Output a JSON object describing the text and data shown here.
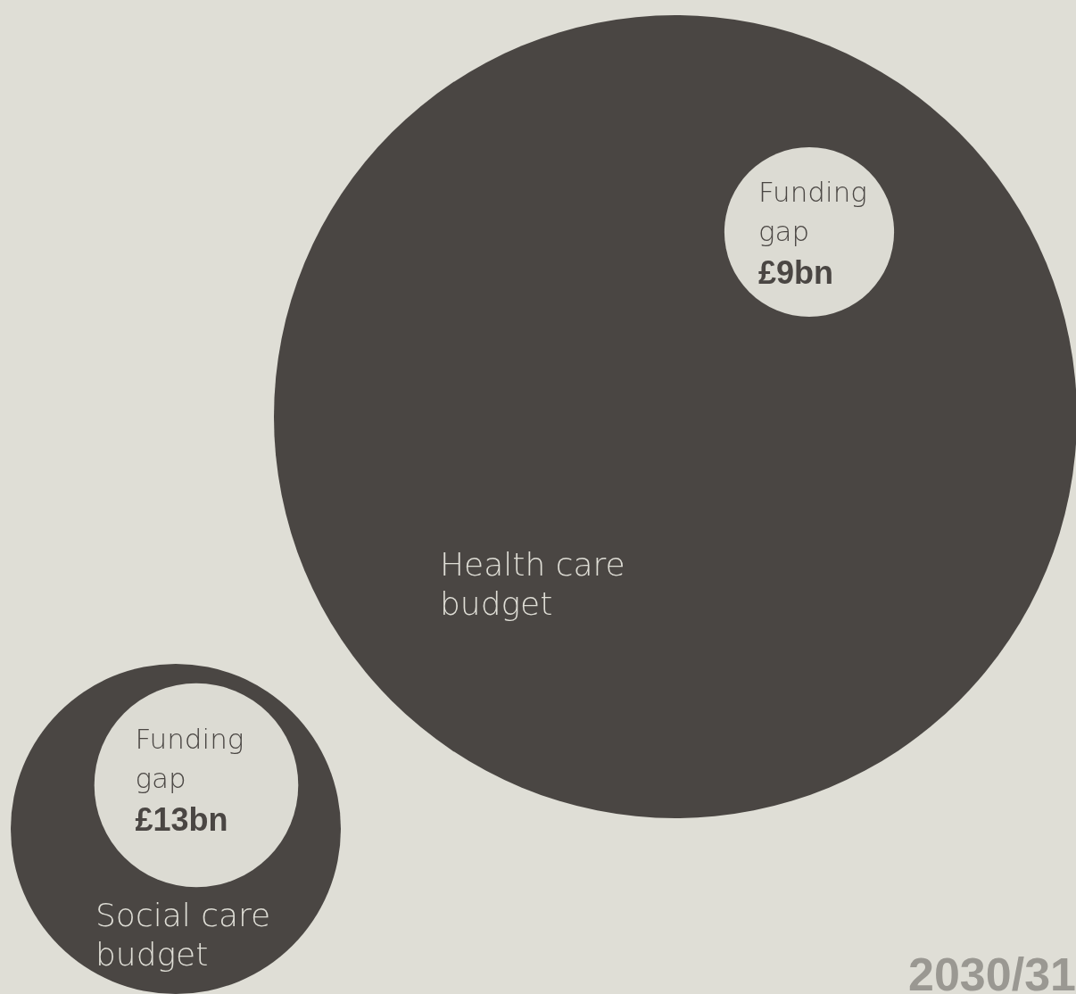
{
  "chart_data": {
    "type": "other",
    "series": [
      {
        "name": "Funding gap",
        "values": [
          9,
          13
        ],
        "value_labels": [
          "£9bn",
          "£13bn"
        ]
      }
    ],
    "annotations": [
      "Health care budget",
      "Social care budget",
      "2030/31"
    ]
  }
}
